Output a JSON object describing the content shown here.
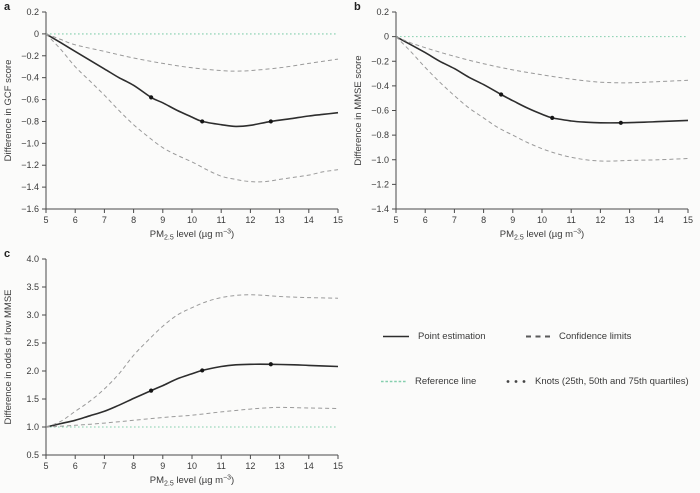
{
  "figure": {
    "background": "#fbfbfa",
    "colors": {
      "point_line": "#2d2d2d",
      "confidence_line": "#9a9a9a",
      "reference_line": "#85cfae",
      "knot_marker": "#151515",
      "axis": "#4a4a4a",
      "text": "#3a3a3a"
    },
    "xlabel_parts": {
      "pre": "PM",
      "sub": "2.5",
      "mid": " level (µg m",
      "sup": "−3",
      "post": ")"
    }
  },
  "chart_data": [
    {
      "panel_label": "a",
      "type": "line",
      "title": "",
      "xlabel": "PM2.5 level (µg m−3)",
      "ylabel": "Difference in GCF score",
      "xlim": [
        5,
        15
      ],
      "ylim": [
        -1.6,
        0.2
      ],
      "xticks": [
        5,
        6,
        7,
        8,
        9,
        10,
        11,
        12,
        13,
        14,
        15
      ],
      "ytick_values": [
        0.2,
        0,
        -0.2,
        -0.4,
        -0.6,
        -0.8,
        -1.0,
        -1.2,
        -1.4,
        -1.6
      ],
      "ytick_labels": [
        "0.2",
        "0",
        "−0.2",
        "−0.4",
        "−0.6",
        "−0.8",
        "−1.0",
        "−1.2",
        "−1.4",
        "−1.6"
      ],
      "grid": false,
      "reference_y": 0,
      "series": [
        {
          "name": "Point estimation",
          "style": "solid",
          "points": [
            [
              5,
              0
            ],
            [
              5.5,
              -0.08
            ],
            [
              6,
              -0.16
            ],
            [
              6.5,
              -0.24
            ],
            [
              7,
              -0.32
            ],
            [
              7.5,
              -0.4
            ],
            [
              8,
              -0.47
            ],
            [
              8.6,
              -0.58
            ],
            [
              9,
              -0.63
            ],
            [
              9.5,
              -0.7
            ],
            [
              10,
              -0.76
            ],
            [
              10.35,
              -0.8
            ],
            [
              11,
              -0.83
            ],
            [
              11.5,
              -0.845
            ],
            [
              12,
              -0.835
            ],
            [
              12.7,
              -0.8
            ],
            [
              13.5,
              -0.77
            ],
            [
              14,
              -0.75
            ],
            [
              14.5,
              -0.735
            ],
            [
              15,
              -0.72
            ]
          ]
        },
        {
          "name": "Upper confidence limit",
          "style": "dashed",
          "points": [
            [
              5,
              0
            ],
            [
              5.5,
              -0.05
            ],
            [
              6,
              -0.1
            ],
            [
              7,
              -0.16
            ],
            [
              8,
              -0.22
            ],
            [
              9,
              -0.27
            ],
            [
              10,
              -0.31
            ],
            [
              11,
              -0.335
            ],
            [
              11.5,
              -0.34
            ],
            [
              12,
              -0.335
            ],
            [
              13,
              -0.31
            ],
            [
              14,
              -0.27
            ],
            [
              15,
              -0.23
            ]
          ]
        },
        {
          "name": "Lower confidence limit",
          "style": "dashed",
          "points": [
            [
              5,
              0
            ],
            [
              5.5,
              -0.14
            ],
            [
              6,
              -0.3
            ],
            [
              6.5,
              -0.43
            ],
            [
              7,
              -0.56
            ],
            [
              7.5,
              -0.7
            ],
            [
              8,
              -0.83
            ],
            [
              8.5,
              -0.94
            ],
            [
              9,
              -1.04
            ],
            [
              9.5,
              -1.11
            ],
            [
              10,
              -1.17
            ],
            [
              10.5,
              -1.24
            ],
            [
              11,
              -1.3
            ],
            [
              11.5,
              -1.33
            ],
            [
              12,
              -1.35
            ],
            [
              12.5,
              -1.35
            ],
            [
              13,
              -1.33
            ],
            [
              13.5,
              -1.31
            ],
            [
              14,
              -1.29
            ],
            [
              14.5,
              -1.26
            ],
            [
              15,
              -1.24
            ]
          ]
        }
      ],
      "knots": [
        [
          8.6,
          -0.58
        ],
        [
          10.35,
          -0.8
        ],
        [
          12.7,
          -0.8
        ]
      ]
    },
    {
      "panel_label": "b",
      "type": "line",
      "title": "",
      "xlabel": "PM2.5 level (µg m−3)",
      "ylabel": "Difference in MMSE score",
      "xlim": [
        5,
        15
      ],
      "ylim": [
        -1.4,
        0.2
      ],
      "xticks": [
        5,
        6,
        7,
        8,
        9,
        10,
        11,
        12,
        13,
        14,
        15
      ],
      "ytick_values": [
        0.2,
        0,
        -0.2,
        -0.4,
        -0.6,
        -0.8,
        -1.0,
        -1.2,
        -1.4
      ],
      "ytick_labels": [
        "0.2",
        "0",
        "−0.2",
        "−0.4",
        "−0.6",
        "−0.8",
        "−1.0",
        "−1.2",
        "−1.4"
      ],
      "grid": false,
      "reference_y": 0,
      "series": [
        {
          "name": "Point estimation",
          "style": "solid",
          "points": [
            [
              5,
              0
            ],
            [
              5.5,
              -0.065
            ],
            [
              6,
              -0.13
            ],
            [
              6.5,
              -0.2
            ],
            [
              7,
              -0.26
            ],
            [
              7.5,
              -0.33
            ],
            [
              8,
              -0.39
            ],
            [
              8.6,
              -0.47
            ],
            [
              9,
              -0.52
            ],
            [
              9.5,
              -0.58
            ],
            [
              10,
              -0.63
            ],
            [
              10.35,
              -0.66
            ],
            [
              11,
              -0.685
            ],
            [
              11.5,
              -0.695
            ],
            [
              12,
              -0.7
            ],
            [
              12.7,
              -0.7
            ],
            [
              13.5,
              -0.695
            ],
            [
              14,
              -0.69
            ],
            [
              15,
              -0.68
            ]
          ]
        },
        {
          "name": "Upper confidence limit",
          "style": "dashed",
          "points": [
            [
              5,
              0
            ],
            [
              5.5,
              -0.05
            ],
            [
              6,
              -0.09
            ],
            [
              7,
              -0.16
            ],
            [
              8,
              -0.22
            ],
            [
              9,
              -0.27
            ],
            [
              10,
              -0.31
            ],
            [
              11,
              -0.345
            ],
            [
              12,
              -0.37
            ],
            [
              13,
              -0.375
            ],
            [
              14,
              -0.365
            ],
            [
              15,
              -0.355
            ]
          ]
        },
        {
          "name": "Lower confidence limit",
          "style": "dashed",
          "points": [
            [
              5,
              0
            ],
            [
              5.5,
              -0.12
            ],
            [
              6,
              -0.25
            ],
            [
              6.5,
              -0.37
            ],
            [
              7,
              -0.48
            ],
            [
              7.5,
              -0.58
            ],
            [
              8,
              -0.66
            ],
            [
              8.5,
              -0.74
            ],
            [
              9,
              -0.8
            ],
            [
              9.5,
              -0.86
            ],
            [
              10,
              -0.91
            ],
            [
              10.5,
              -0.95
            ],
            [
              11,
              -0.98
            ],
            [
              11.5,
              -1.0
            ],
            [
              12,
              -1.01
            ],
            [
              12.5,
              -1.01
            ],
            [
              13,
              -1.005
            ],
            [
              14,
              -1.0
            ],
            [
              15,
              -0.99
            ]
          ]
        }
      ],
      "knots": [
        [
          8.6,
          -0.47
        ],
        [
          10.35,
          -0.66
        ],
        [
          12.7,
          -0.7
        ]
      ]
    },
    {
      "panel_label": "c",
      "type": "line",
      "title": "",
      "xlabel": "PM2.5 level (µg m−3)",
      "ylabel": "Difference in odds of low MMSE",
      "xlim": [
        5,
        15
      ],
      "ylim": [
        0.5,
        4.0
      ],
      "xticks": [
        5,
        6,
        7,
        8,
        9,
        10,
        11,
        12,
        13,
        14,
        15
      ],
      "ytick_values": [
        4.0,
        3.5,
        3.0,
        2.5,
        2.0,
        1.5,
        1.0,
        0.5
      ],
      "ytick_labels": [
        "4.0",
        "3.5",
        "3.0",
        "2.5",
        "2.0",
        "1.5",
        "1.0",
        "0.5"
      ],
      "grid": false,
      "reference_y": 1,
      "series": [
        {
          "name": "Point estimation",
          "style": "solid",
          "points": [
            [
              5,
              1.0
            ],
            [
              5.5,
              1.06
            ],
            [
              6,
              1.12
            ],
            [
              6.5,
              1.2
            ],
            [
              7,
              1.28
            ],
            [
              7.5,
              1.39
            ],
            [
              8,
              1.51
            ],
            [
              8.6,
              1.65
            ],
            [
              9,
              1.74
            ],
            [
              9.5,
              1.86
            ],
            [
              10,
              1.95
            ],
            [
              10.35,
              2.01
            ],
            [
              11,
              2.08
            ],
            [
              11.5,
              2.11
            ],
            [
              12,
              2.12
            ],
            [
              12.7,
              2.12
            ],
            [
              13.5,
              2.11
            ],
            [
              14,
              2.1
            ],
            [
              15,
              2.08
            ]
          ]
        },
        {
          "name": "Upper confidence limit",
          "style": "dashed",
          "points": [
            [
              5,
              1.0
            ],
            [
              5.5,
              1.1
            ],
            [
              6,
              1.28
            ],
            [
              6.5,
              1.46
            ],
            [
              7,
              1.68
            ],
            [
              7.5,
              1.95
            ],
            [
              8,
              2.28
            ],
            [
              8.5,
              2.55
            ],
            [
              9,
              2.8
            ],
            [
              9.5,
              3.0
            ],
            [
              10,
              3.13
            ],
            [
              10.5,
              3.24
            ],
            [
              11,
              3.31
            ],
            [
              11.5,
              3.35
            ],
            [
              12,
              3.36
            ],
            [
              12.5,
              3.35
            ],
            [
              13,
              3.33
            ],
            [
              13.5,
              3.32
            ],
            [
              14,
              3.31
            ],
            [
              15,
              3.3
            ]
          ]
        },
        {
          "name": "Lower confidence limit",
          "style": "dashed",
          "points": [
            [
              5,
              1.0
            ],
            [
              6,
              1.03
            ],
            [
              7,
              1.07
            ],
            [
              8,
              1.12
            ],
            [
              9,
              1.17
            ],
            [
              10,
              1.21
            ],
            [
              11,
              1.27
            ],
            [
              12,
              1.32
            ],
            [
              12.5,
              1.34
            ],
            [
              13,
              1.35
            ],
            [
              14,
              1.34
            ],
            [
              15,
              1.33
            ]
          ]
        }
      ],
      "knots": [
        [
          8.6,
          1.65
        ],
        [
          10.35,
          2.01
        ],
        [
          12.7,
          2.12
        ]
      ]
    }
  ],
  "legend": {
    "items": [
      {
        "label": "Point estimation",
        "swatch": "solid"
      },
      {
        "label": "Confidence limits",
        "swatch": "dashed"
      },
      {
        "label": "Reference line",
        "swatch": "reference"
      },
      {
        "label": "Knots (25th, 50th and 75th quartiles)",
        "swatch": "knots"
      }
    ]
  }
}
